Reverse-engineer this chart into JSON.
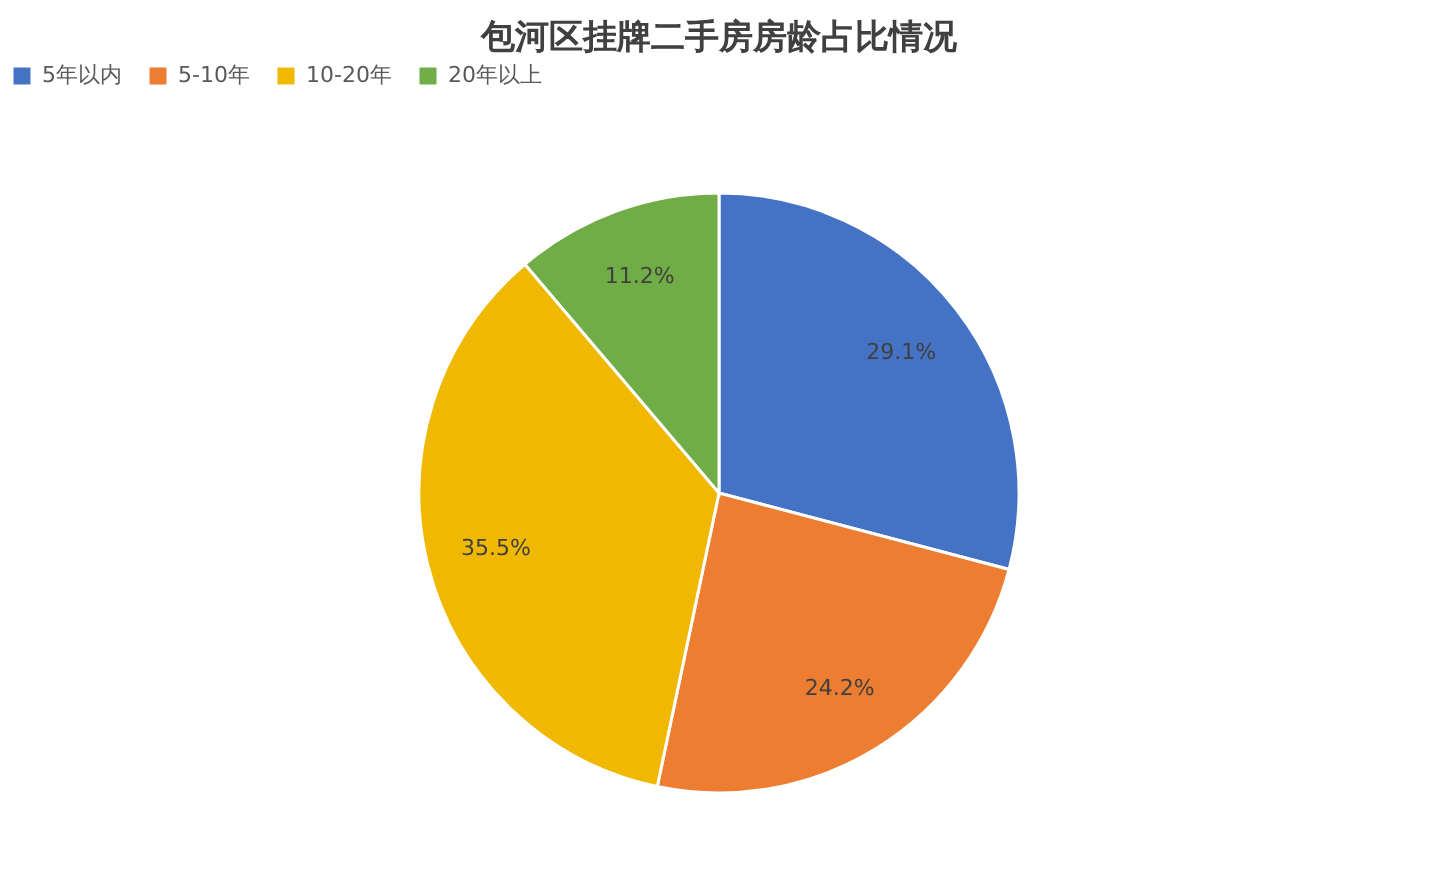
{
  "chart_data": {
    "type": "pie",
    "title": "包河区挂牌二手房房龄占比情况",
    "categories": [
      "5年以内",
      "5-10年",
      "10-20年",
      "20年以上"
    ],
    "values": [
      29.1,
      24.2,
      35.5,
      11.2
    ],
    "value_labels": [
      "29.1%",
      "24.2%",
      "35.5%",
      "11.2%"
    ],
    "colors": [
      "#4472c4",
      "#ed7d31",
      "#f0b800",
      "#70ad47"
    ],
    "legend": "top"
  }
}
